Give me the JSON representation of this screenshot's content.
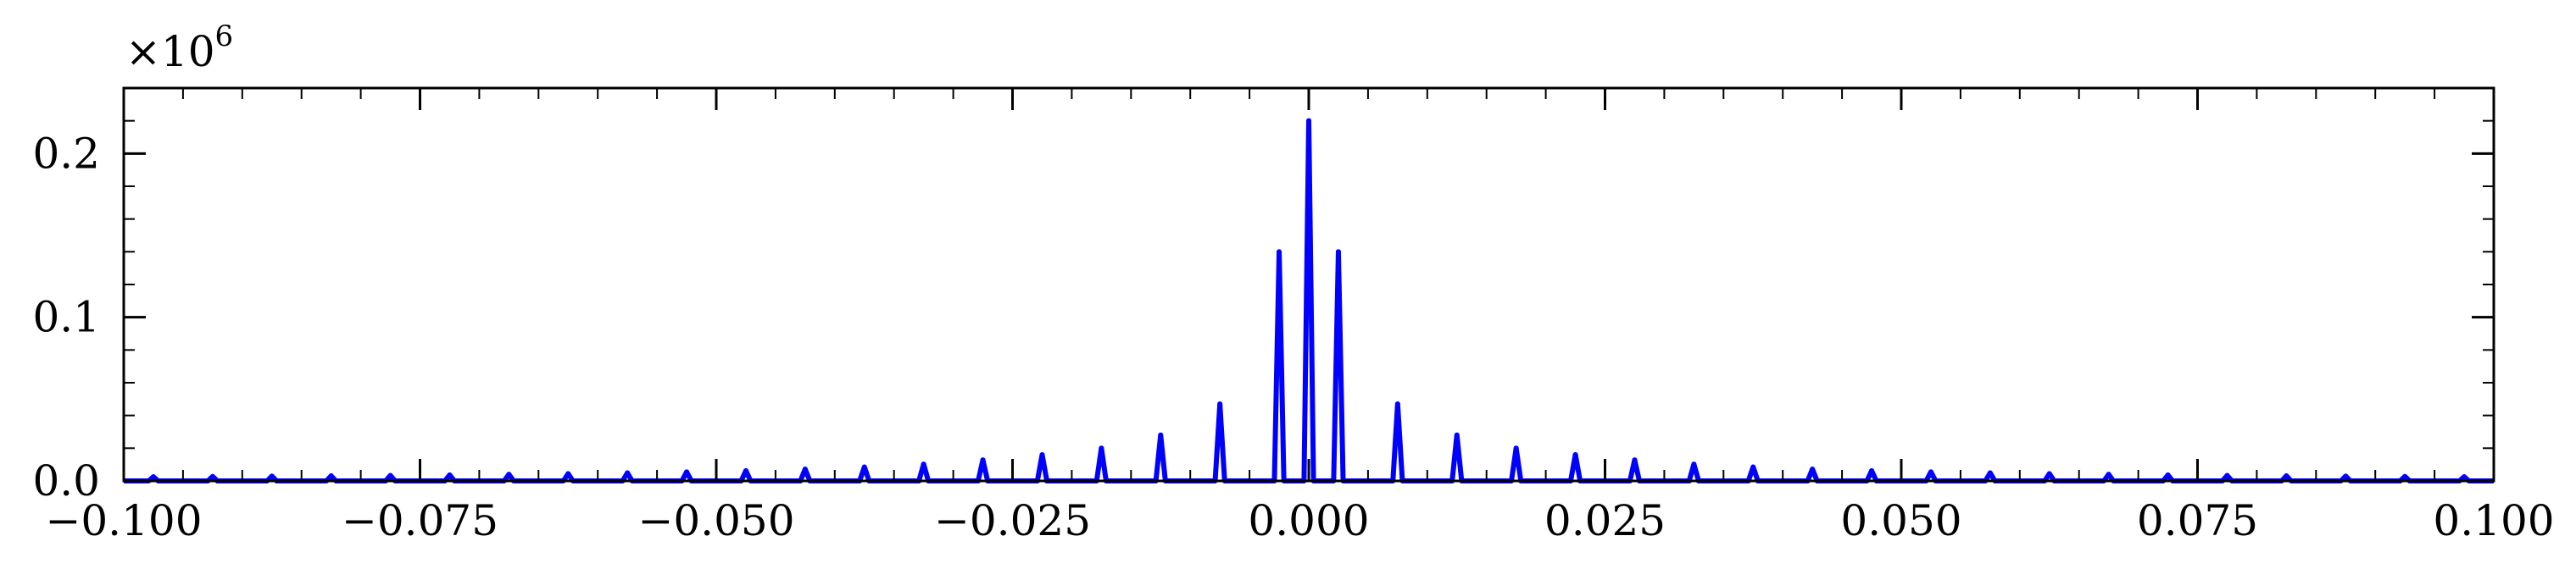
{
  "chart_data": {
    "type": "line",
    "title": "",
    "xlabel": "",
    "ylabel": "",
    "y_multiplier_label": "×10",
    "y_multiplier_exponent": "6",
    "xlim": [
      -0.1,
      0.1
    ],
    "ylim": [
      0,
      0.24
    ],
    "x_ticks": [
      -0.1,
      -0.075,
      -0.05,
      -0.025,
      0.0,
      0.025,
      0.05,
      0.075,
      0.1
    ],
    "x_tick_labels": [
      "−0.100",
      "−0.075",
      "−0.050",
      "−0.025",
      "0.000",
      "0.025",
      "0.050",
      "0.075",
      "0.100"
    ],
    "y_ticks": [
      0.0,
      0.1,
      0.2
    ],
    "y_tick_labels": [
      "0.0",
      "0.1",
      "0.2"
    ],
    "grid": false,
    "tick_direction": "in",
    "line_color": "#0000ff",
    "peak_half_width": 0.0004,
    "series": [
      {
        "peaks": [
          {
            "x": -0.0975,
            "y": 0.0025
          },
          {
            "x": -0.0925,
            "y": 0.0027
          },
          {
            "x": -0.0875,
            "y": 0.0029
          },
          {
            "x": -0.0825,
            "y": 0.0031
          },
          {
            "x": -0.0775,
            "y": 0.0033
          },
          {
            "x": -0.0725,
            "y": 0.0036
          },
          {
            "x": -0.0675,
            "y": 0.004
          },
          {
            "x": -0.0625,
            "y": 0.0044
          },
          {
            "x": -0.0575,
            "y": 0.0049
          },
          {
            "x": -0.0525,
            "y": 0.0055
          },
          {
            "x": -0.0475,
            "y": 0.0062
          },
          {
            "x": -0.0425,
            "y": 0.0072
          },
          {
            "x": -0.0375,
            "y": 0.0085
          },
          {
            "x": -0.0325,
            "y": 0.0102
          },
          {
            "x": -0.0275,
            "y": 0.0128
          },
          {
            "x": -0.0225,
            "y": 0.016
          },
          {
            "x": -0.0175,
            "y": 0.02
          },
          {
            "x": -0.0125,
            "y": 0.028
          },
          {
            "x": -0.0075,
            "y": 0.047
          },
          {
            "x": -0.0025,
            "y": 0.14
          },
          {
            "x": 0.0,
            "y": 0.22
          },
          {
            "x": 0.0025,
            "y": 0.14
          },
          {
            "x": 0.0075,
            "y": 0.047
          },
          {
            "x": 0.0125,
            "y": 0.028
          },
          {
            "x": 0.0175,
            "y": 0.02
          },
          {
            "x": 0.0225,
            "y": 0.016
          },
          {
            "x": 0.0275,
            "y": 0.0128
          },
          {
            "x": 0.0325,
            "y": 0.0102
          },
          {
            "x": 0.0375,
            "y": 0.0085
          },
          {
            "x": 0.0425,
            "y": 0.0072
          },
          {
            "x": 0.0475,
            "y": 0.0062
          },
          {
            "x": 0.0525,
            "y": 0.0055
          },
          {
            "x": 0.0575,
            "y": 0.0049
          },
          {
            "x": 0.0625,
            "y": 0.0044
          },
          {
            "x": 0.0675,
            "y": 0.004
          },
          {
            "x": 0.0725,
            "y": 0.0036
          },
          {
            "x": 0.0775,
            "y": 0.0033
          },
          {
            "x": 0.0825,
            "y": 0.0031
          },
          {
            "x": 0.0875,
            "y": 0.0029
          },
          {
            "x": 0.0925,
            "y": 0.0027
          },
          {
            "x": 0.0975,
            "y": 0.0025
          }
        ]
      }
    ]
  }
}
